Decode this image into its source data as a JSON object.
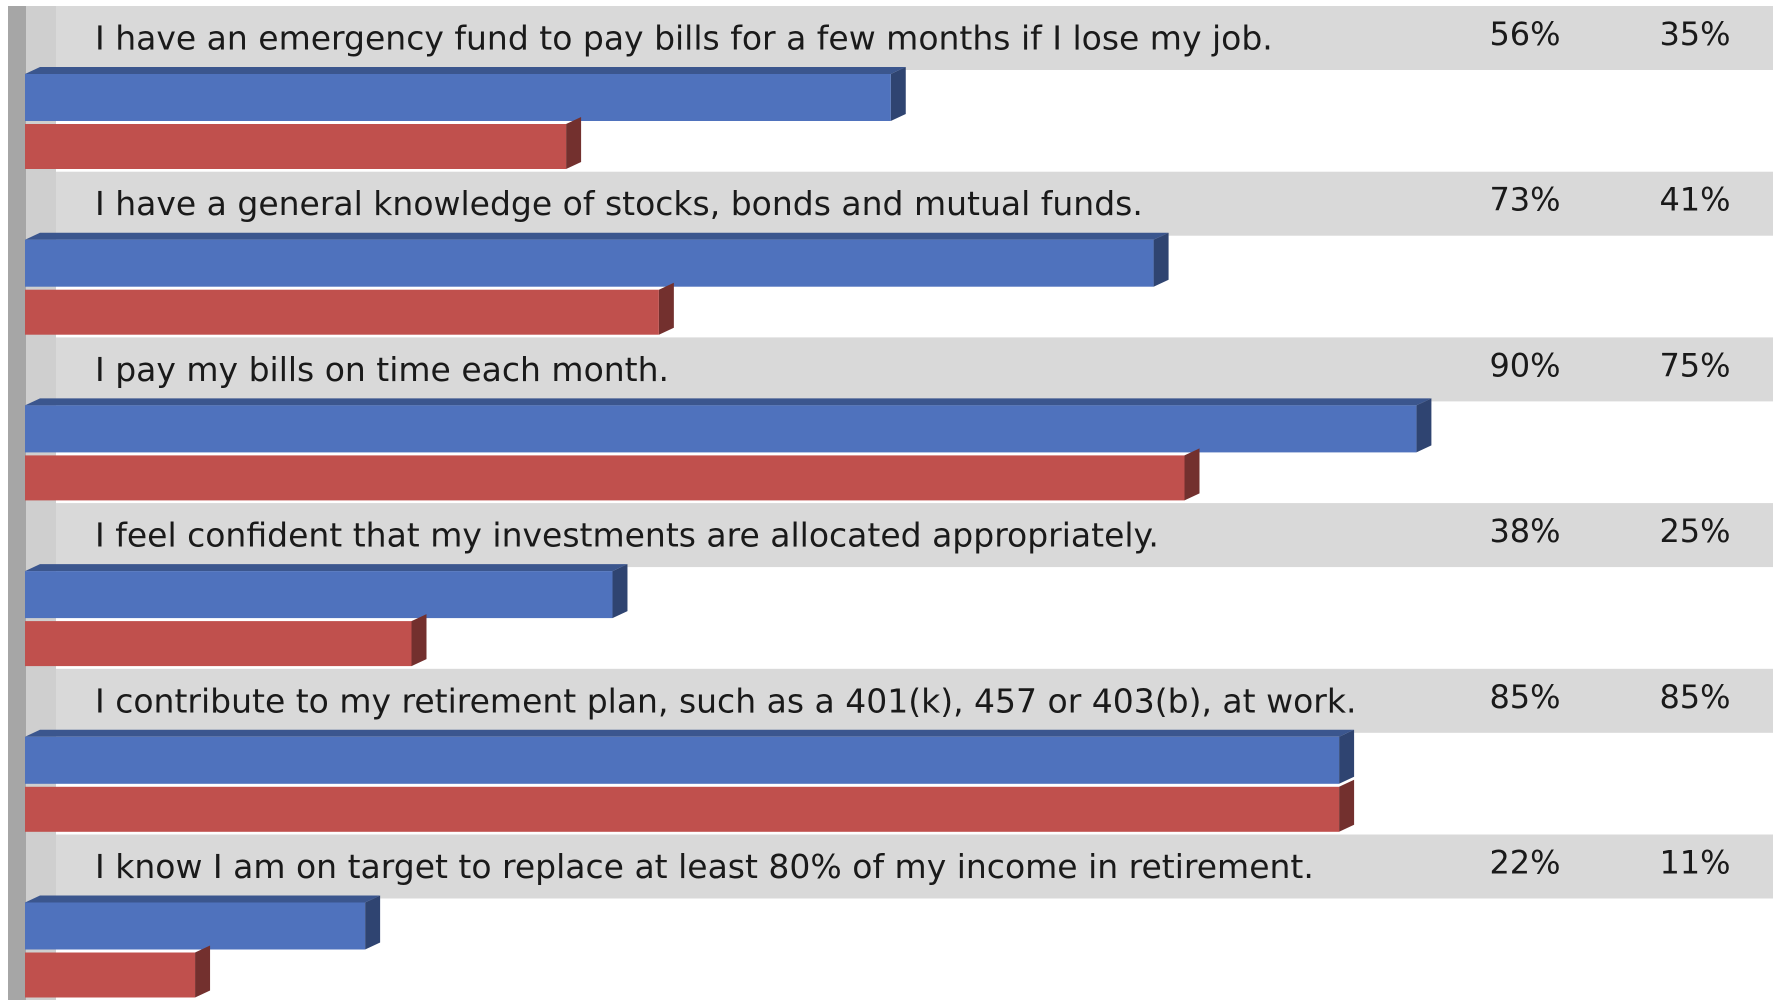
{
  "chart_data": {
    "type": "bar",
    "orientation": "horizontal",
    "categories": [
      "I have an emergency fund to pay bills for a few months if I lose my job.",
      "I have a general knowledge of stocks, bonds and mutual funds.",
      "I pay my bills on time each month.",
      "I feel confident that my investments are allocated appropriately.",
      "I contribute to my retirement plan, such as a 401(k), 457 or 403(b), at work.",
      "I know I am on target to replace at least 80% of my income in retirement."
    ],
    "series": [
      {
        "color": "#4f72bd",
        "values": [
          56,
          73,
          90,
          38,
          85,
          22
        ],
        "value_labels": [
          "56%",
          "73%",
          "90%",
          "38%",
          "85%",
          "22%"
        ]
      },
      {
        "color": "#c0504d",
        "values": [
          35,
          41,
          75,
          25,
          85,
          11
        ],
        "value_labels": [
          "35%",
          "41%",
          "75%",
          "25%",
          "85%",
          "11%"
        ]
      }
    ],
    "xlim": [
      0,
      100
    ]
  }
}
